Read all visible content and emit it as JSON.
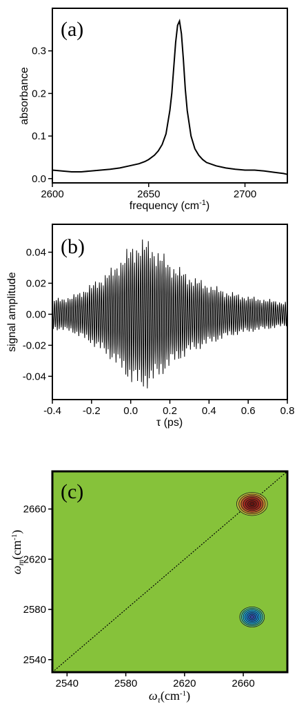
{
  "colors": {
    "map_background": "#86c23a",
    "positive_peak": "#a52a1e",
    "negative_peak": "#1aa0d8"
  },
  "chart_data": [
    {
      "type": "line",
      "panel_label": "(a)",
      "xlabel": "frequency (cm",
      "xlabel_sup": "-1",
      "xlabel_end": ")",
      "ylabel": "absorbance",
      "xlim": [
        2600,
        2722
      ],
      "ylim": [
        -0.01,
        0.4
      ],
      "x_ticks": [
        "2600",
        "2650",
        "2700"
      ],
      "x_tick_values": [
        2600,
        2650,
        2700
      ],
      "y_ticks": [
        "0.0",
        "0.1",
        "0.2",
        "0.3"
      ],
      "y_tick_values": [
        0.0,
        0.1,
        0.2,
        0.3
      ],
      "series": [
        {
          "x": [
            2600,
            2605,
            2610,
            2615,
            2620,
            2625,
            2630,
            2635,
            2640,
            2645,
            2648,
            2650,
            2653,
            2655,
            2657,
            2659,
            2661,
            2662,
            2663,
            2664,
            2665,
            2666,
            2667,
            2668,
            2669,
            2670,
            2672,
            2674,
            2676,
            2678,
            2680,
            2685,
            2690,
            2695,
            2700,
            2705,
            2710,
            2715,
            2720,
            2722
          ],
          "y": [
            0.02,
            0.018,
            0.016,
            0.016,
            0.018,
            0.02,
            0.022,
            0.025,
            0.03,
            0.035,
            0.04,
            0.045,
            0.055,
            0.065,
            0.08,
            0.105,
            0.16,
            0.2,
            0.26,
            0.32,
            0.36,
            0.37,
            0.34,
            0.28,
            0.21,
            0.16,
            0.1,
            0.07,
            0.055,
            0.045,
            0.038,
            0.03,
            0.025,
            0.022,
            0.02,
            0.02,
            0.018,
            0.015,
            0.012,
            0.01
          ]
        }
      ]
    },
    {
      "type": "line",
      "panel_label": "(b)",
      "xlabel": "τ (ps)",
      "ylabel": "signal amplitude",
      "xlim": [
        -0.4,
        0.8
      ],
      "ylim": [
        -0.055,
        0.058
      ],
      "x_ticks": [
        "-0.4",
        "-0.2",
        "0.0",
        "0.2",
        "0.4",
        "0.6",
        "0.8"
      ],
      "x_tick_values": [
        -0.4,
        -0.2,
        0.0,
        0.2,
        0.4,
        0.6,
        0.8
      ],
      "y_ticks": [
        "-0.04",
        "-0.02",
        "0.00",
        "0.02",
        "0.04"
      ],
      "y_tick_values": [
        -0.04,
        -0.02,
        0.0,
        0.02,
        0.04
      ],
      "oscillation": {
        "envelope_t": [
          -0.4,
          -0.3,
          -0.2,
          -0.1,
          0.0,
          0.05,
          0.1,
          0.2,
          0.3,
          0.4,
          0.5,
          0.6,
          0.7,
          0.8
        ],
        "envelope_amp": [
          0.01,
          0.012,
          0.02,
          0.03,
          0.045,
          0.05,
          0.048,
          0.035,
          0.026,
          0.02,
          0.015,
          0.012,
          0.01,
          0.008
        ],
        "frequency_cm-1": 2664
      }
    },
    {
      "type": "heatmap",
      "panel_label": "(c)",
      "xlabel": "ω",
      "xlabel_sub": "τ",
      "xlabel_unit": "(cm",
      "xlabel_sup": "-1",
      "xlabel_end": ")",
      "ylabel": "ω",
      "ylabel_sub": "m",
      "ylabel_unit": "(cm",
      "ylabel_sup": "-1",
      "ylabel_end": ")",
      "xlim": [
        2530,
        2690
      ],
      "ylim": [
        2530,
        2690
      ],
      "x_ticks": [
        "2540",
        "2580",
        "2620",
        "2660"
      ],
      "x_tick_values": [
        2540,
        2580,
        2620,
        2660
      ],
      "y_ticks": [
        "2540",
        "2580",
        "2620",
        "2660"
      ],
      "y_tick_values": [
        2540,
        2580,
        2620,
        2660
      ],
      "peaks": [
        {
          "sign": "positive",
          "center": [
            2666,
            2664
          ],
          "radius": [
            10,
            8
          ]
        },
        {
          "sign": "negative",
          "center": [
            2666,
            2574
          ],
          "radius": [
            8,
            7
          ]
        }
      ],
      "diagonal": true
    }
  ]
}
